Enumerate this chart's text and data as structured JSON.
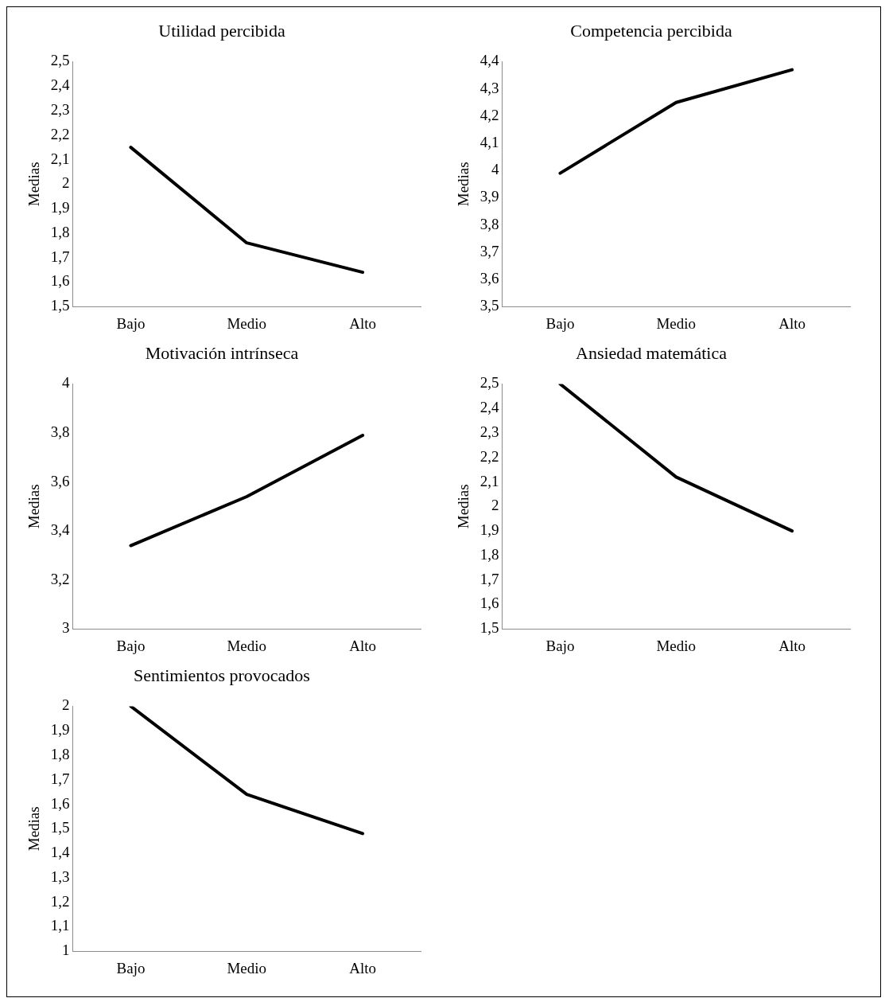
{
  "chart_data": [
    {
      "type": "line",
      "title": "Utilidad percibida",
      "ylabel": "Medias",
      "categories": [
        "Bajo",
        "Medio",
        "Alto"
      ],
      "series": [
        {
          "color": "#000000",
          "values": [
            2.15,
            1.76,
            1.64
          ]
        }
      ],
      "ylim": [
        1.5,
        2.5
      ],
      "yticks": [
        {
          "value": 1.5,
          "label": "1,5"
        },
        {
          "value": 1.6,
          "label": "1,6"
        },
        {
          "value": 1.7,
          "label": "1,7"
        },
        {
          "value": 1.8,
          "label": "1,8"
        },
        {
          "value": 1.9,
          "label": "1,9"
        },
        {
          "value": 2,
          "label": "2"
        },
        {
          "value": 2.1,
          "label": "2,1"
        },
        {
          "value": 2.2,
          "label": "2,2"
        },
        {
          "value": 2.3,
          "label": "2,3"
        },
        {
          "value": 2.4,
          "label": "2,4"
        },
        {
          "value": 2.5,
          "label": "2,5"
        }
      ]
    },
    {
      "type": "line",
      "title": "Competencia percibida",
      "ylabel": "Medias",
      "categories": [
        "Bajo",
        "Medio",
        "Alto"
      ],
      "series": [
        {
          "color": "#000000",
          "values": [
            3.99,
            4.25,
            4.37
          ]
        }
      ],
      "ylim": [
        3.5,
        4.4
      ],
      "yticks": [
        {
          "value": 3.5,
          "label": "3,5"
        },
        {
          "value": 3.6,
          "label": "3,6"
        },
        {
          "value": 3.7,
          "label": "3,7"
        },
        {
          "value": 3.8,
          "label": "3,8"
        },
        {
          "value": 3.9,
          "label": "3,9"
        },
        {
          "value": 4,
          "label": "4"
        },
        {
          "value": 4.1,
          "label": "4,1"
        },
        {
          "value": 4.2,
          "label": "4,2"
        },
        {
          "value": 4.3,
          "label": "4,3"
        },
        {
          "value": 4.4,
          "label": "4,4"
        }
      ]
    },
    {
      "type": "line",
      "title": "Motivación intrínseca",
      "ylabel": "Medias",
      "categories": [
        "Bajo",
        "Medio",
        "Alto"
      ],
      "series": [
        {
          "color": "#000000",
          "values": [
            3.34,
            3.54,
            3.79
          ]
        }
      ],
      "ylim": [
        3,
        4
      ],
      "yticks": [
        {
          "value": 3,
          "label": "3"
        },
        {
          "value": 3.2,
          "label": "3,2"
        },
        {
          "value": 3.4,
          "label": "3,4"
        },
        {
          "value": 3.6,
          "label": "3,6"
        },
        {
          "value": 3.8,
          "label": "3,8"
        },
        {
          "value": 4,
          "label": "4"
        }
      ]
    },
    {
      "type": "line",
      "title": "Ansiedad matemática",
      "ylabel": "Medias",
      "categories": [
        "Bajo",
        "Medio",
        "Alto"
      ],
      "series": [
        {
          "color": "#000000",
          "values": [
            2.5,
            2.12,
            1.9
          ]
        }
      ],
      "ylim": [
        1.5,
        2.5
      ],
      "yticks": [
        {
          "value": 1.5,
          "label": "1,5"
        },
        {
          "value": 1.6,
          "label": "1,6"
        },
        {
          "value": 1.7,
          "label": "1,7"
        },
        {
          "value": 1.8,
          "label": "1,8"
        },
        {
          "value": 1.9,
          "label": "1,9"
        },
        {
          "value": 2,
          "label": "2"
        },
        {
          "value": 2.1,
          "label": "2,1"
        },
        {
          "value": 2.2,
          "label": "2,2"
        },
        {
          "value": 2.3,
          "label": "2,3"
        },
        {
          "value": 2.4,
          "label": "2,4"
        },
        {
          "value": 2.5,
          "label": "2,5"
        }
      ]
    },
    {
      "type": "line",
      "title": "Sentimientos provocados",
      "ylabel": "Medias",
      "categories": [
        "Bajo",
        "Medio",
        "Alto"
      ],
      "series": [
        {
          "color": "#000000",
          "values": [
            2,
            1.64,
            1.48
          ]
        }
      ],
      "ylim": [
        1,
        2
      ],
      "yticks": [
        {
          "value": 1,
          "label": "1"
        },
        {
          "value": 1.1,
          "label": "1,1"
        },
        {
          "value": 1.2,
          "label": "1,2"
        },
        {
          "value": 1.3,
          "label": "1,3"
        },
        {
          "value": 1.4,
          "label": "1,4"
        },
        {
          "value": 1.5,
          "label": "1,5"
        },
        {
          "value": 1.6,
          "label": "1,6"
        },
        {
          "value": 1.7,
          "label": "1,7"
        },
        {
          "value": 1.8,
          "label": "1,8"
        },
        {
          "value": 1.9,
          "label": "1,9"
        },
        {
          "value": 2,
          "label": "2"
        }
      ]
    }
  ]
}
